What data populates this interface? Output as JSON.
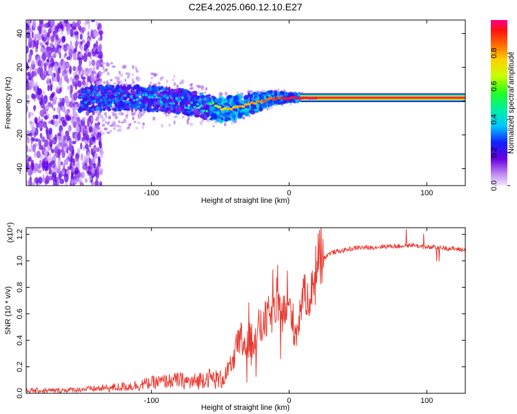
{
  "title": "C2E4.2025.060.12.10.E27",
  "chart_data": [
    {
      "type": "heatmap",
      "title": "C2E4.2025.060.12.10.E27",
      "xlabel": "Height of straight line (km)",
      "ylabel": "Frequency (Hz)",
      "xlim": [
        -191,
        128
      ],
      "ylim": [
        -50,
        48
      ],
      "x_ticks": [
        -100,
        0,
        100
      ],
      "y_ticks": [
        -40,
        -20,
        0,
        20,
        40
      ],
      "colorbar": {
        "label": "Normalized spectral amplitude",
        "range": [
          0,
          1
        ],
        "ticks": [
          0.0,
          0.2,
          0.4,
          0.6,
          0.8
        ],
        "tick_labels": [
          "0.0",
          "0.2",
          "0.4",
          "0.6",
          "0.8"
        ]
      },
      "ridge": {
        "x": [
          -150,
          -130,
          -110,
          -90,
          -75,
          -60,
          -50,
          -40,
          -30,
          -20,
          -10,
          0,
          10,
          20,
          40,
          60,
          80,
          100,
          128
        ],
        "y": [
          1,
          2,
          2,
          1,
          -1,
          -3,
          -5,
          -4,
          -2,
          0,
          2,
          2,
          2,
          2,
          2,
          2,
          2,
          2,
          2
        ],
        "amplitude": [
          0.3,
          0.35,
          0.35,
          0.38,
          0.4,
          0.45,
          0.75,
          0.78,
          0.8,
          0.85,
          0.9,
          0.95,
          0.97,
          1.0,
          1.0,
          1.0,
          1.0,
          1.0,
          1.0
        ]
      }
    },
    {
      "type": "line",
      "xlabel": "Height of straight line (km)",
      "ylabel": "SNR (10 * v/v)",
      "scale_label": "(x10⁴)",
      "xlim": [
        -191,
        128
      ],
      "ylim": [
        0,
        1.25
      ],
      "x_ticks": [
        -100,
        0,
        100
      ],
      "y_ticks": [
        0.0,
        0.2,
        0.4,
        0.6,
        0.8,
        1.0,
        1.2
      ],
      "y_tick_labels": [
        "0.0",
        "0.2",
        "0.4",
        "0.6",
        "0.8",
        "1.0",
        "1.2"
      ],
      "series": [
        {
          "name": "SNR",
          "color": "#e8392f",
          "x": [
            -191,
            -170,
            -150,
            -130,
            -110,
            -100,
            -90,
            -80,
            -70,
            -60,
            -50,
            -45,
            -40,
            -35,
            -30,
            -25,
            -20,
            -15,
            -10,
            -5,
            0,
            5,
            10,
            15,
            20,
            25,
            30,
            40,
            50,
            60,
            70,
            80,
            90,
            100,
            110,
            120,
            128
          ],
          "y": [
            0.02,
            0.02,
            0.03,
            0.04,
            0.06,
            0.08,
            0.09,
            0.1,
            0.08,
            0.12,
            0.1,
            0.15,
            0.25,
            0.4,
            0.35,
            0.45,
            0.5,
            0.58,
            0.62,
            0.6,
            0.65,
            0.45,
            0.75,
            0.72,
            0.95,
            1.02,
            1.06,
            1.08,
            1.1,
            1.1,
            1.11,
            1.11,
            1.12,
            1.1,
            1.1,
            1.09,
            1.08
          ]
        }
      ]
    }
  ]
}
